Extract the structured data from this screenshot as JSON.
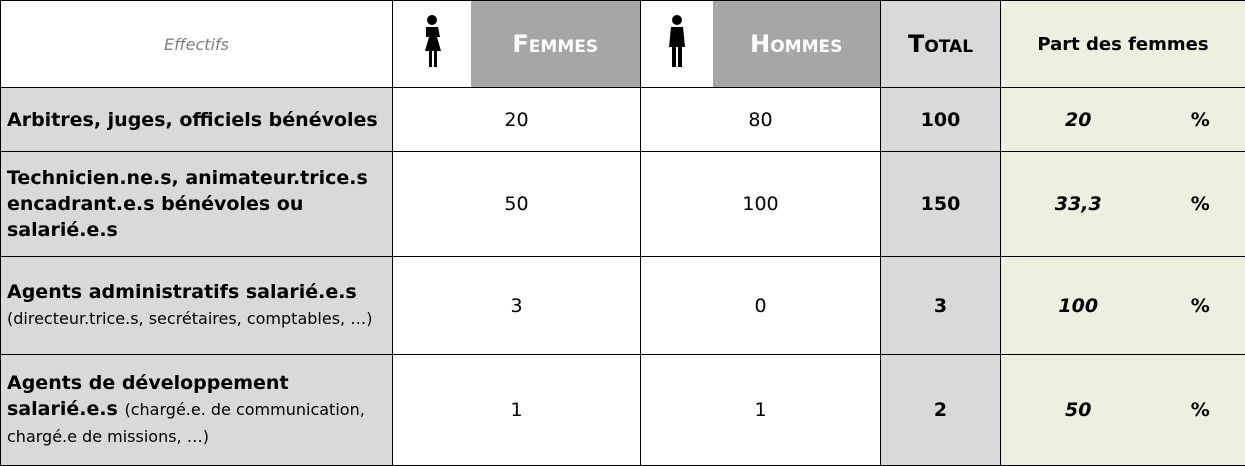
{
  "header": {
    "effectifs": "Effectifs",
    "femmes": "Femmes",
    "hommes": "Hommes",
    "total": "Total",
    "part": "Part des femmes"
  },
  "percent_sign": "%",
  "rows": [
    {
      "label": "Arbitres, juges, officiels bénévoles",
      "detail": null,
      "femmes": 20,
      "hommes": 80,
      "total": 100,
      "part": "20"
    },
    {
      "label": "Technicien.ne.s, animateur.trice.s encadrant.e.s bénévoles ou salarié.e.s",
      "detail": null,
      "femmes": 50,
      "hommes": 100,
      "total": 150,
      "part": "33,3"
    },
    {
      "label": "Agents administratifs salarié.e.s",
      "detail": "(directeur.trice.s, secrétaires, comptables, …)",
      "femmes": 3,
      "hommes": 0,
      "total": 3,
      "part": "100"
    },
    {
      "label": "Agents de développement salarié.e.s",
      "detail": "(chargé.e. de communication, chargé.e de missions, …)",
      "femmes": 1,
      "hommes": 1,
      "total": 2,
      "part": "50"
    }
  ]
}
